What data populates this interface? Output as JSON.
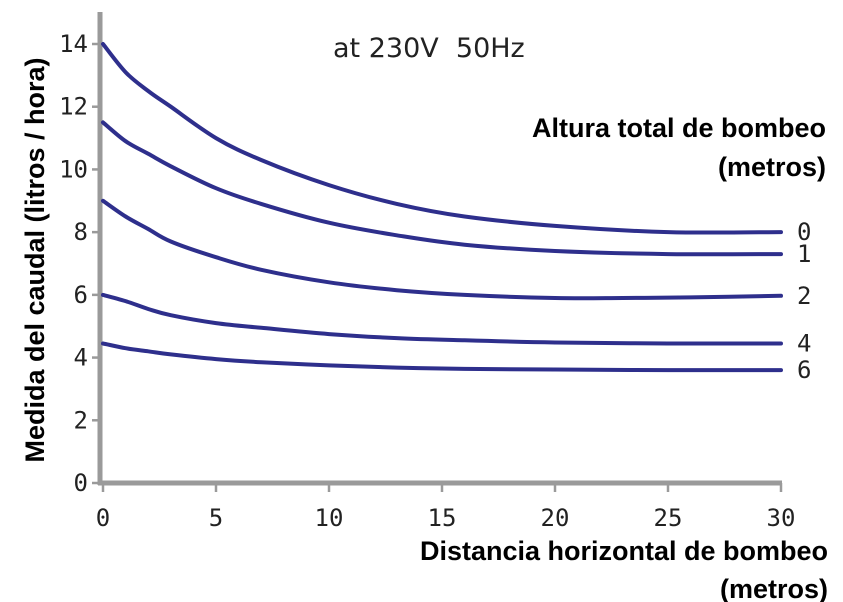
{
  "chart_data": {
    "type": "line",
    "subtitle": "at 230V  50Hz",
    "xlabel_line1": "Distancia horizontal de bombeo",
    "xlabel_line2": "(metros)",
    "ylabel": "Medida del caudal (litros / hora)",
    "legend_title_line1": "Altura total de bombeo",
    "legend_title_line2": "(metros)",
    "xlim": [
      0,
      30
    ],
    "ylim": [
      0,
      15
    ],
    "x_ticks": [
      0,
      5,
      10,
      15,
      20,
      25,
      30
    ],
    "x_tick_labels": [
      "0",
      "5",
      "10",
      "15",
      "20",
      "25",
      "30"
    ],
    "y_ticks": [
      0,
      2,
      4,
      6,
      8,
      10,
      12,
      14
    ],
    "y_tick_labels": [
      "0",
      "2",
      "4",
      "6",
      "8",
      "10",
      "12",
      "14"
    ],
    "grid": false,
    "line_color": "#2e2f8c",
    "series": [
      {
        "name": "0",
        "x": [
          0,
          1,
          2,
          3,
          5,
          7,
          10,
          13,
          16,
          20,
          25,
          30
        ],
        "values": [
          14.0,
          13.1,
          12.5,
          12.0,
          11.0,
          10.3,
          9.5,
          8.9,
          8.5,
          8.2,
          8.0,
          8.0
        ]
      },
      {
        "name": "1",
        "x": [
          0,
          1,
          2,
          3,
          5,
          7,
          10,
          13,
          16,
          20,
          25,
          30
        ],
        "values": [
          11.5,
          10.9,
          10.5,
          10.1,
          9.4,
          8.9,
          8.3,
          7.9,
          7.6,
          7.4,
          7.3,
          7.3
        ]
      },
      {
        "name": "2",
        "x": [
          0,
          1,
          2,
          3,
          5,
          7,
          10,
          13,
          16,
          20,
          23,
          26,
          30
        ],
        "values": [
          9.0,
          8.5,
          8.1,
          7.7,
          7.2,
          6.8,
          6.4,
          6.15,
          6.0,
          5.9,
          5.9,
          5.92,
          5.97
        ]
      },
      {
        "name": "4",
        "x": [
          0,
          1,
          2,
          3,
          5,
          7,
          10,
          13,
          16,
          20,
          25,
          30
        ],
        "values": [
          6.0,
          5.8,
          5.55,
          5.35,
          5.1,
          4.95,
          4.75,
          4.62,
          4.55,
          4.48,
          4.45,
          4.45
        ]
      },
      {
        "name": "6",
        "x": [
          0,
          1,
          2,
          3,
          5,
          7,
          10,
          13,
          16,
          20,
          25,
          30
        ],
        "values": [
          4.45,
          4.3,
          4.2,
          4.1,
          3.95,
          3.85,
          3.75,
          3.68,
          3.64,
          3.62,
          3.6,
          3.6
        ]
      }
    ]
  }
}
